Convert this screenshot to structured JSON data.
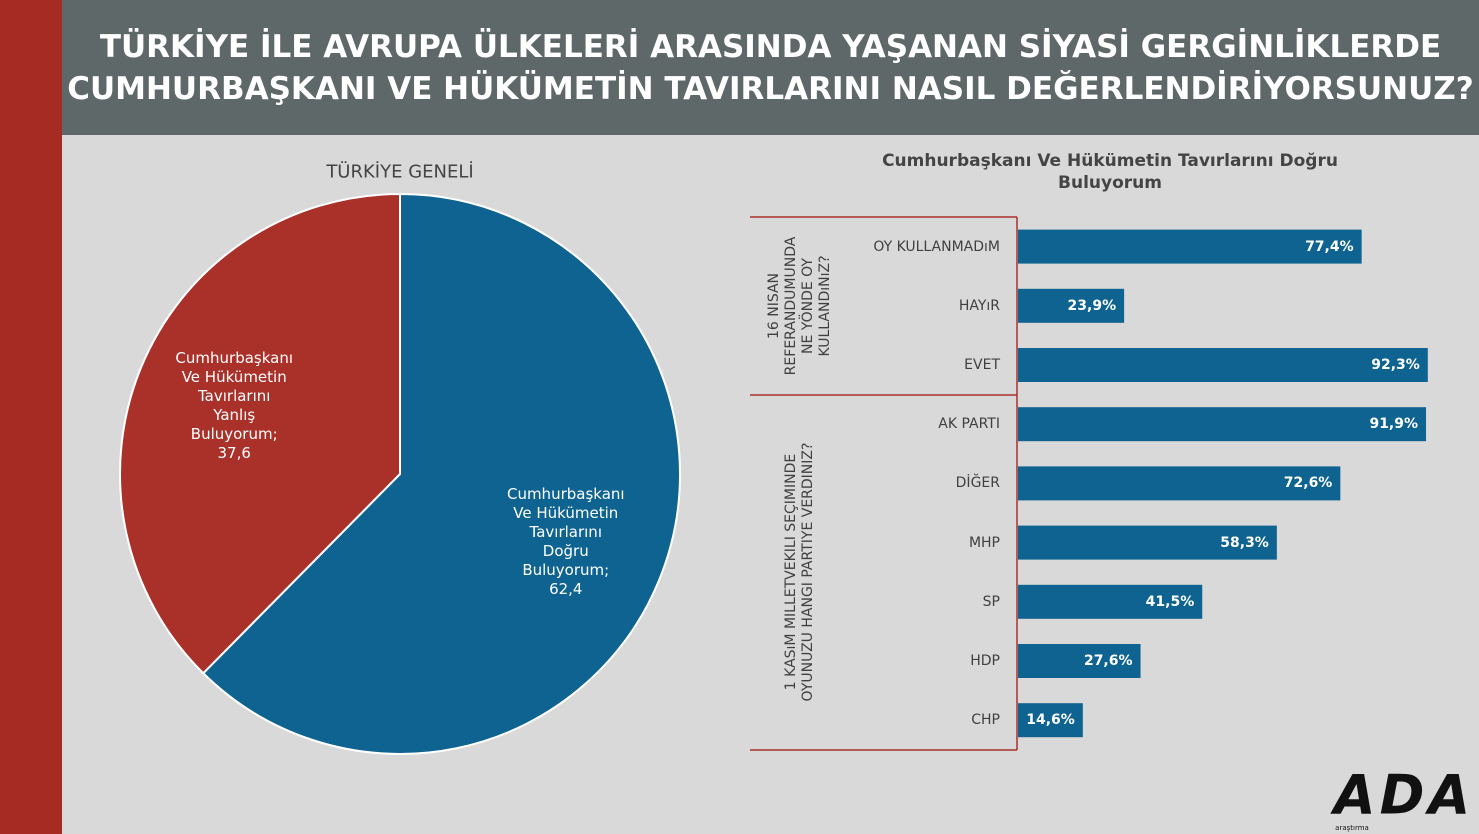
{
  "title_lines": [
    "TÜRKİYE İLE AVRUPA ÜLKELERİ ARASINDA YAŞANAN SİYASİ GERGİNLİKLERDE",
    "CUMHURBAŞKANI VE HÜKÜMETİN TAVIRLARINI NASIL DEĞERLENDİRİYORSUNUZ?"
  ],
  "logo": {
    "mark": "ADA",
    "text": "araştırma"
  },
  "chart_data": [
    {
      "type": "pie",
      "title": "TÜRKİYE GENELİ",
      "categories": [
        "Cumhurbaşkanı Ve Hükümetin Tavırlarını Doğru Buluyorum;",
        "Cumhurbaşkanı Ve Hükümetin Tavırlarını Yanlış Buluyorum;"
      ],
      "values": [
        62.4,
        37.6
      ],
      "value_labels": [
        "62,4",
        "37,6"
      ],
      "colors": [
        "#0f6391",
        "#a9312a"
      ]
    },
    {
      "type": "bar",
      "orientation": "horizontal",
      "title": "Cumhurbaşkanı Ve Hükümetin Tavırlarını Doğru Buluyorum",
      "color": "#0f6391",
      "xlim": [
        0,
        100
      ],
      "groups": [
        {
          "label_lines": [
            "16 NISAN",
            "REFERANDUMUNDA",
            "NE YÖNDE OY",
            "KULLANDıNıZ?"
          ],
          "categories": [
            "OY KULLANMADıM",
            "HAYıR",
            "EVET"
          ],
          "values": [
            77.4,
            23.9,
            92.3
          ],
          "value_labels": [
            "77,4%",
            "23,9%",
            "92,3%"
          ]
        },
        {
          "label_lines": [
            "1 KASıM MILLETVEKILI SEÇIMINDE",
            "OYUNUZU HANGI PARTIYE VERDINIZ?"
          ],
          "categories": [
            "AK PARTI",
            "DİĞER",
            "MHP",
            "SP",
            "HDP",
            "CHP"
          ],
          "values": [
            91.9,
            72.6,
            58.3,
            41.5,
            27.6,
            14.6
          ],
          "value_labels": [
            "91,9%",
            "72,6%",
            "58,3%",
            "41,5%",
            "27,6%",
            "14,6%"
          ]
        }
      ]
    }
  ]
}
